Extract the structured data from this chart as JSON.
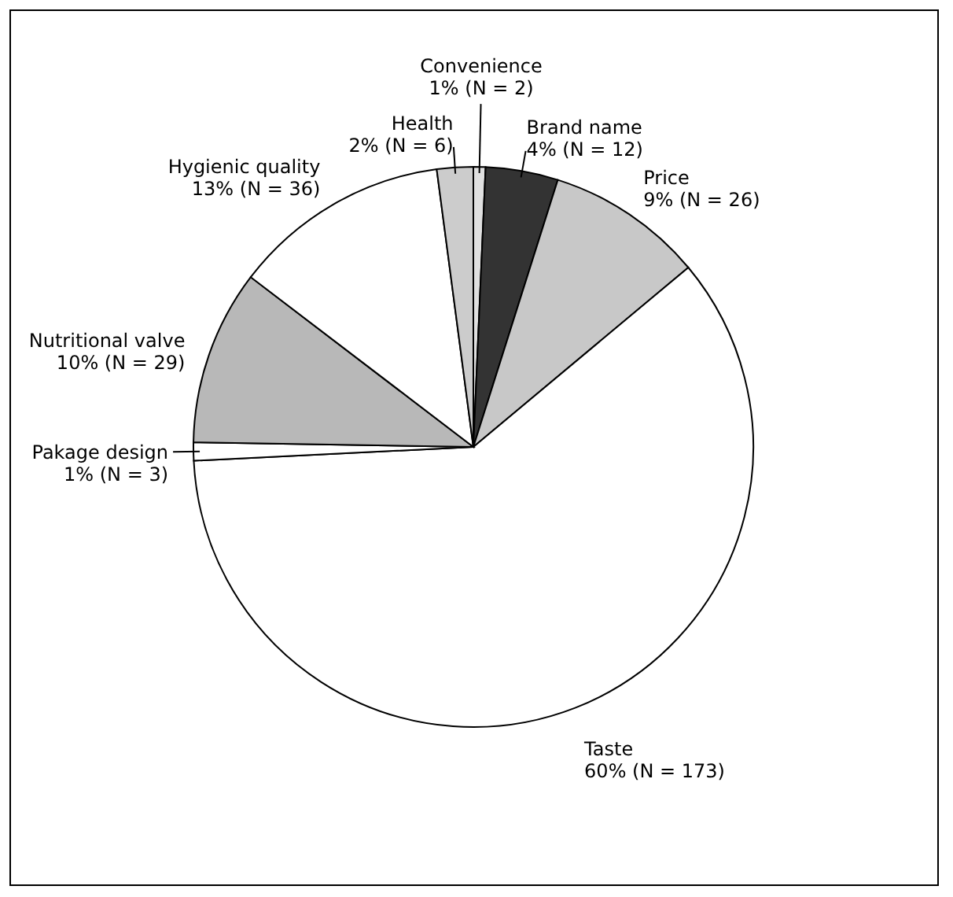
{
  "chart_data": {
    "type": "pie",
    "categories": [
      "Convenience",
      "Brand name",
      "Price",
      "Taste",
      "Pakage design",
      "Nutritional valve",
      "Hygienic quality",
      "Health"
    ],
    "values": [
      2,
      12,
      26,
      173,
      3,
      29,
      36,
      6
    ],
    "value_labels": [
      "1% (N = 2)",
      "4% (N = 12)",
      "9% (N = 26)",
      "60% (N = 173)",
      "1% (N = 3)",
      "10% (N = 29)",
      "13% (N = 36)",
      "2% (N = 6)"
    ],
    "colors": [
      "#e0e0e0",
      "#333333",
      "#c8c8c8",
      "#ffffff",
      "#ffffff",
      "#b8b8b8",
      "#ffffff",
      "#cccccc"
    ],
    "legend": false
  }
}
